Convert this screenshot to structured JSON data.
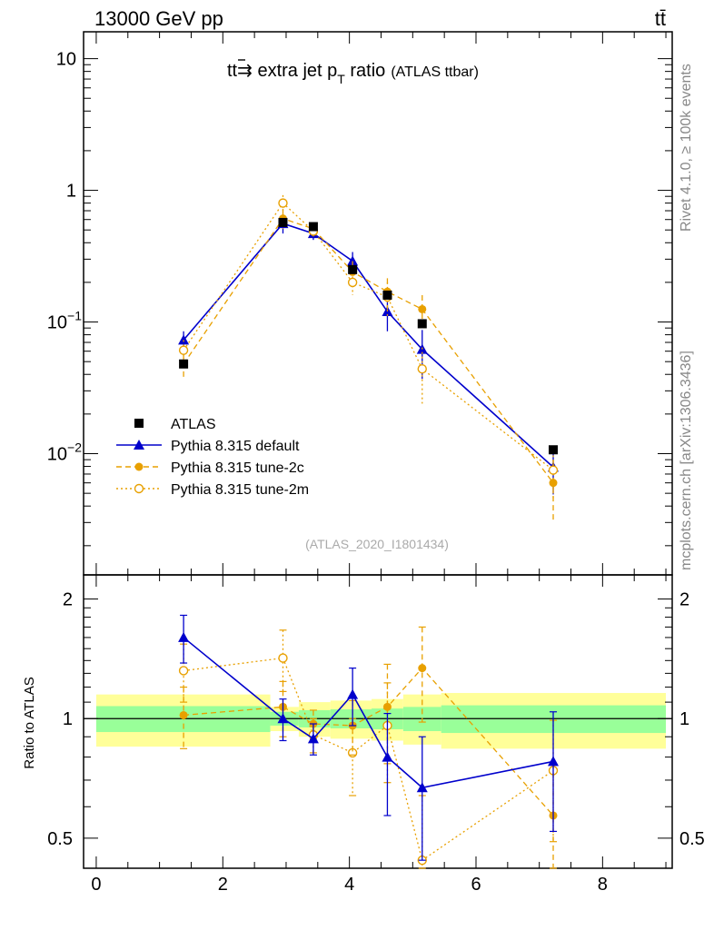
{
  "header": {
    "energy_label": "13000 GeV pp",
    "process_label": "tt̄",
    "rivet_label": "Rivet 4.1.0, ≥ 100k events",
    "site_label": "mcplots.cern.ch [arXiv:1306.3436]"
  },
  "colors": {
    "atlas": "#000000",
    "default": "#0000cc",
    "tune2c": "#e8a000",
    "tune2m": "#e8a000",
    "band_inner": "#99ff99",
    "band_outer": "#ffff99"
  },
  "chart_data": [
    {
      "type": "scatter",
      "panel": "main",
      "title": "tt̄ → extra jet p_T ratio",
      "title_main": "tt",
      "title_arrow": "⇉",
      "title_rest": " extra jet p",
      "title_sub": "T",
      "title_ratio": " ratio",
      "title_note": "(ATLAS ttbar)",
      "analysis_label": "(ATLAS_2020_I1801434)",
      "yscale": "log",
      "xlim": [
        -0.2,
        9.1
      ],
      "ylim": [
        0.0012,
        16
      ],
      "y_ticklabels": [
        {
          "v": 10,
          "base": "10",
          "exp": ""
        },
        {
          "v": 1,
          "base": "1",
          "exp": ""
        },
        {
          "v": 0.1,
          "base": "10",
          "exp": "−1"
        },
        {
          "v": 0.01,
          "base": "10",
          "exp": "−2"
        }
      ],
      "legend": [
        {
          "key": "atlas",
          "label": "ATLAS"
        },
        {
          "key": "default",
          "label": "Pythia 8.315 default"
        },
        {
          "key": "tune2c",
          "label": "Pythia 8.315 tune-2c"
        },
        {
          "key": "tune2m",
          "label": "Pythia 8.315 tune-2m"
        }
      ],
      "series": [
        {
          "key": "atlas",
          "name": "ATLAS",
          "x": [
            1.38,
            2.95,
            3.43,
            4.05,
            4.6,
            5.15,
            7.22
          ],
          "y": [
            0.048,
            0.57,
            0.53,
            0.25,
            0.16,
            0.097,
            0.0107
          ],
          "err": [
            0.003,
            0.02,
            0.02,
            0.01,
            0.01,
            0.005,
            0.0005
          ]
        },
        {
          "key": "default",
          "name": "Pythia 8.315 default",
          "x": [
            1.38,
            2.95,
            3.43,
            4.05,
            4.6,
            5.15,
            7.22
          ],
          "y": [
            0.073,
            0.56,
            0.47,
            0.29,
            0.12,
            0.062,
            0.0079
          ],
          "err": [
            0.012,
            0.09,
            0.05,
            0.05,
            0.035,
            0.025,
            0.003
          ]
        },
        {
          "key": "tune2c",
          "name": "Pythia 8.315 tune-2c",
          "x": [
            1.38,
            2.95,
            3.43,
            4.05,
            4.6,
            5.15,
            7.22
          ],
          "y": [
            0.048,
            0.61,
            0.51,
            0.24,
            0.17,
            0.125,
            0.006
          ],
          "err": [
            0.01,
            0.1,
            0.05,
            0.05,
            0.045,
            0.035,
            0.003
          ]
        },
        {
          "key": "tune2m",
          "name": "Pythia 8.315 tune-2m",
          "x": [
            1.38,
            2.95,
            3.43,
            4.05,
            4.6,
            5.15,
            7.22
          ],
          "y": [
            0.061,
            0.8,
            0.49,
            0.2,
            0.155,
            0.044,
            0.0075
          ],
          "err": [
            0.012,
            0.12,
            0.05,
            0.04,
            0.045,
            0.02,
            0.003
          ]
        }
      ]
    },
    {
      "type": "scatter",
      "panel": "ratio",
      "ylabel": "Ratio to ATLAS",
      "xlabel": "",
      "yscale": "log",
      "xlim": [
        -0.2,
        9.1
      ],
      "ylim": [
        0.42,
        2.3
      ],
      "x_ticklabels": [
        0,
        2,
        4,
        6,
        8
      ],
      "y_ticklabels": [
        {
          "v": 2,
          "label": "2"
        },
        {
          "v": 1,
          "label": "1"
        },
        {
          "v": 0.5,
          "label": "0.5"
        }
      ],
      "bands": [
        {
          "x0": 0.0,
          "x1": 2.75,
          "inner": [
            0.925,
            1.075
          ],
          "outer": [
            0.85,
            1.15
          ]
        },
        {
          "x0": 2.75,
          "x1": 3.2,
          "inner": [
            0.96,
            1.04
          ],
          "outer": [
            0.93,
            1.07
          ]
        },
        {
          "x0": 3.2,
          "x1": 3.7,
          "inner": [
            0.95,
            1.05
          ],
          "outer": [
            0.9,
            1.1
          ]
        },
        {
          "x0": 3.7,
          "x1": 4.35,
          "inner": [
            0.945,
            1.055
          ],
          "outer": [
            0.89,
            1.11
          ]
        },
        {
          "x0": 4.35,
          "x1": 4.85,
          "inner": [
            0.94,
            1.06
          ],
          "outer": [
            0.88,
            1.12
          ]
        },
        {
          "x0": 4.85,
          "x1": 5.45,
          "inner": [
            0.93,
            1.07
          ],
          "outer": [
            0.86,
            1.15
          ]
        },
        {
          "x0": 5.45,
          "x1": 9.0,
          "inner": [
            0.92,
            1.08
          ],
          "outer": [
            0.84,
            1.16
          ]
        }
      ],
      "series": [
        {
          "key": "default",
          "name": "Pythia 8.315 default",
          "x": [
            1.38,
            2.95,
            3.43,
            4.05,
            4.6,
            5.15,
            7.22
          ],
          "y": [
            1.6,
            1.0,
            0.89,
            1.15,
            0.8,
            0.67,
            0.78
          ],
          "err": [
            0.22,
            0.12,
            0.08,
            0.19,
            0.23,
            0.23,
            0.26
          ]
        },
        {
          "key": "tune2c",
          "name": "Pythia 8.315 tune-2c",
          "x": [
            1.38,
            2.95,
            3.43,
            4.05,
            4.6,
            5.15,
            7.22
          ],
          "y": [
            1.02,
            1.07,
            0.97,
            0.96,
            1.07,
            1.34,
            0.57
          ],
          "err": [
            0.18,
            0.17,
            0.08,
            0.15,
            0.3,
            0.36,
            0.2
          ]
        },
        {
          "key": "tune2m",
          "name": "Pythia 8.315 tune-2m",
          "x": [
            1.38,
            2.95,
            3.43,
            4.05,
            4.6,
            5.15,
            7.22
          ],
          "y": [
            1.32,
            1.42,
            0.91,
            0.82,
            0.96,
            0.44,
            0.74
          ],
          "err": [
            0.22,
            0.25,
            0.09,
            0.18,
            0.27,
            0.2,
            0.25
          ]
        }
      ]
    }
  ]
}
